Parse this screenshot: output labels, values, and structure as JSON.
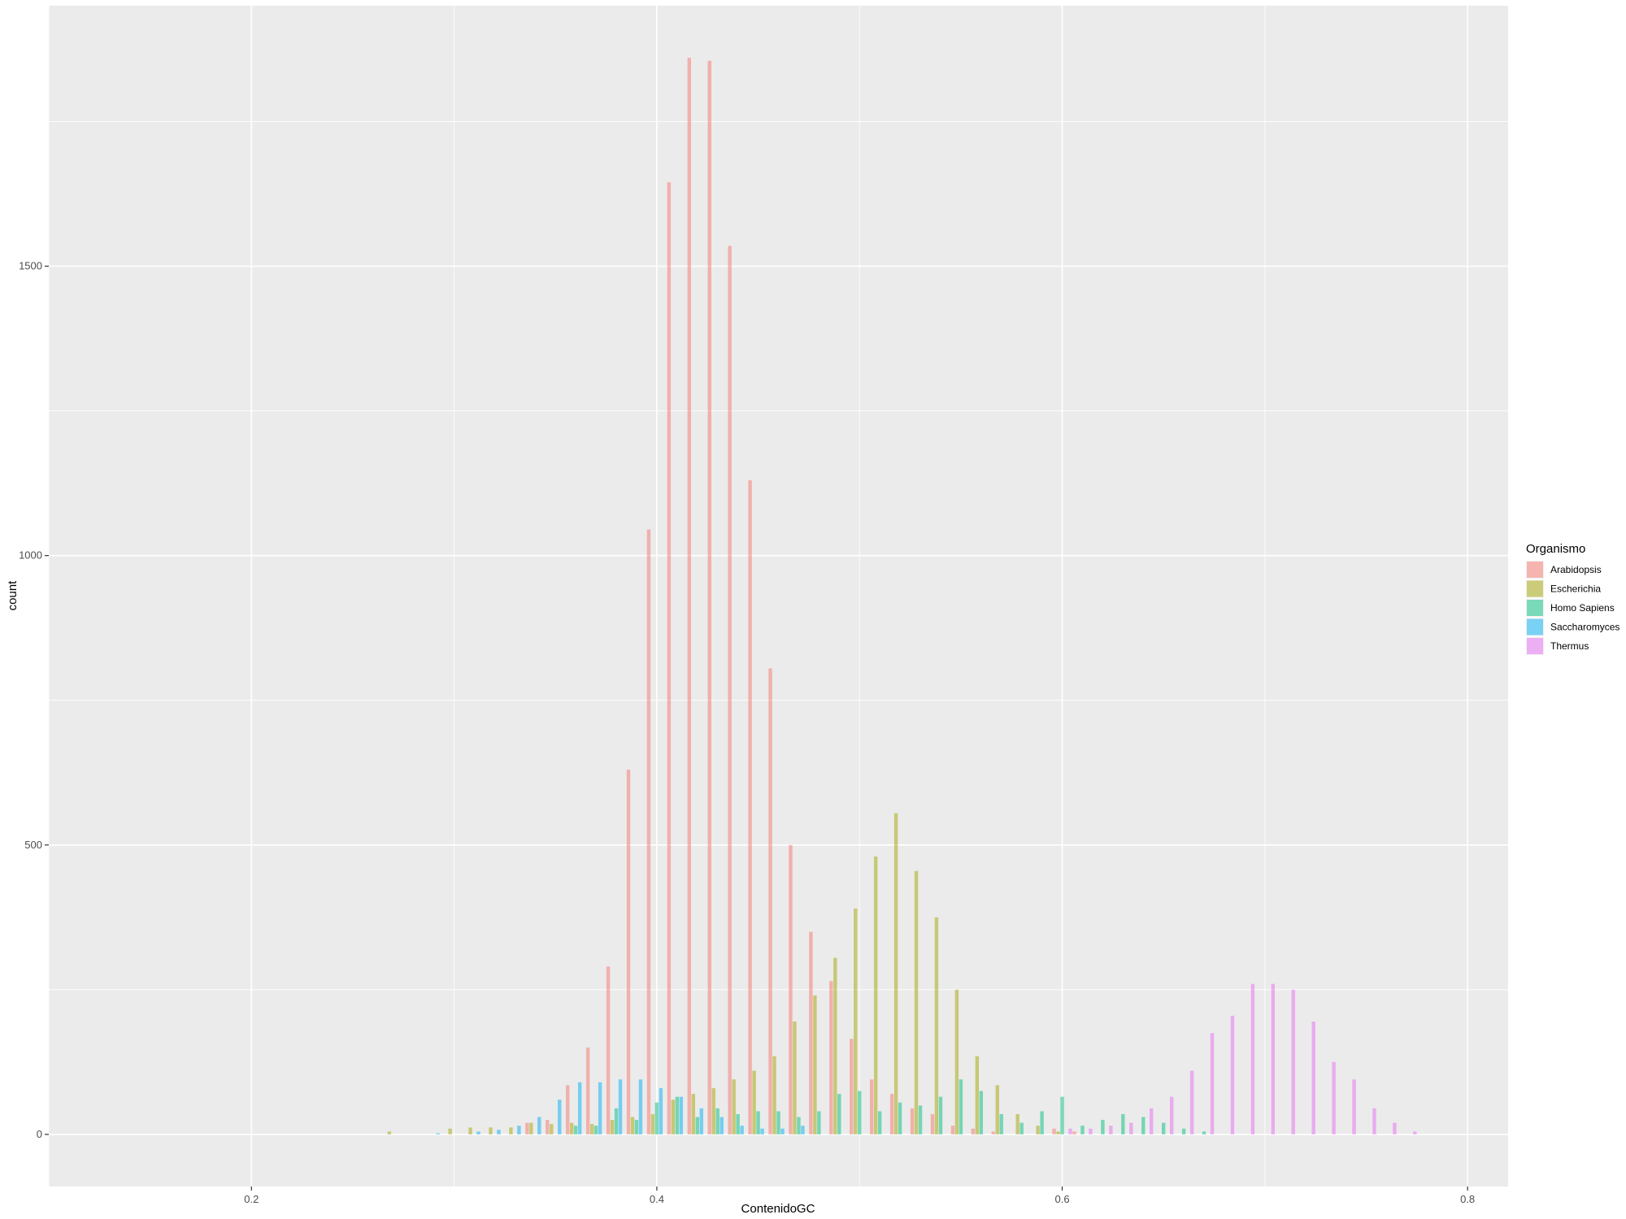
{
  "chart_data": {
    "type": "bar",
    "subtype": "histogram-dodged",
    "xlabel": "ContenidoGC",
    "ylabel": "count",
    "xlim": [
      0.1,
      0.82
    ],
    "ylim": [
      -90,
      1950
    ],
    "x_ticks": [
      0.2,
      0.4,
      0.6,
      0.8
    ],
    "x_tick_labels": [
      "0.2",
      "0.4",
      "0.6",
      "0.8"
    ],
    "y_ticks": [
      0,
      500,
      1000,
      1500
    ],
    "y_tick_labels": [
      "0",
      "500",
      "1000",
      "1500"
    ],
    "grid": true,
    "legend": {
      "title": "Organismo",
      "position": "right"
    },
    "bin_width": 0.01,
    "series": [
      {
        "name": "Arabidopsis",
        "color": "#F8766D",
        "points": [
          [
            0.34,
            20
          ],
          [
            0.35,
            25
          ],
          [
            0.36,
            85
          ],
          [
            0.37,
            150
          ],
          [
            0.38,
            290
          ],
          [
            0.39,
            630
          ],
          [
            0.4,
            1045
          ],
          [
            0.41,
            1645
          ],
          [
            0.42,
            1860
          ],
          [
            0.43,
            1855
          ],
          [
            0.44,
            1535
          ],
          [
            0.45,
            1130
          ],
          [
            0.46,
            805
          ],
          [
            0.47,
            500
          ],
          [
            0.48,
            350
          ],
          [
            0.49,
            265
          ],
          [
            0.5,
            165
          ],
          [
            0.51,
            95
          ],
          [
            0.52,
            70
          ],
          [
            0.53,
            45
          ],
          [
            0.54,
            35
          ],
          [
            0.55,
            15
          ],
          [
            0.56,
            10
          ],
          [
            0.57,
            5
          ],
          [
            0.6,
            10
          ],
          [
            0.61,
            5
          ]
        ]
      },
      {
        "name": "Escherichia",
        "color": "#A3A500",
        "points": [
          [
            0.27,
            5
          ],
          [
            0.3,
            10
          ],
          [
            0.31,
            12
          ],
          [
            0.32,
            12
          ],
          [
            0.33,
            12
          ],
          [
            0.34,
            20
          ],
          [
            0.35,
            18
          ],
          [
            0.36,
            20
          ],
          [
            0.37,
            18
          ],
          [
            0.38,
            25
          ],
          [
            0.39,
            30
          ],
          [
            0.4,
            35
          ],
          [
            0.41,
            60
          ],
          [
            0.42,
            70
          ],
          [
            0.43,
            80
          ],
          [
            0.44,
            95
          ],
          [
            0.45,
            110
          ],
          [
            0.46,
            135
          ],
          [
            0.47,
            195
          ],
          [
            0.48,
            240
          ],
          [
            0.49,
            305
          ],
          [
            0.5,
            390
          ],
          [
            0.51,
            480
          ],
          [
            0.52,
            555
          ],
          [
            0.53,
            455
          ],
          [
            0.54,
            375
          ],
          [
            0.55,
            250
          ],
          [
            0.56,
            135
          ],
          [
            0.57,
            85
          ],
          [
            0.58,
            35
          ],
          [
            0.59,
            15
          ],
          [
            0.6,
            5
          ]
        ]
      },
      {
        "name": "Homo Sapiens",
        "color": "#00BF7D",
        "points": [
          [
            0.36,
            15
          ],
          [
            0.37,
            15
          ],
          [
            0.38,
            45
          ],
          [
            0.39,
            25
          ],
          [
            0.4,
            55
          ],
          [
            0.41,
            65
          ],
          [
            0.42,
            30
          ],
          [
            0.43,
            45
          ],
          [
            0.44,
            35
          ],
          [
            0.45,
            40
          ],
          [
            0.46,
            40
          ],
          [
            0.47,
            30
          ],
          [
            0.48,
            40
          ],
          [
            0.49,
            70
          ],
          [
            0.5,
            75
          ],
          [
            0.51,
            40
          ],
          [
            0.52,
            55
          ],
          [
            0.53,
            50
          ],
          [
            0.54,
            65
          ],
          [
            0.55,
            95
          ],
          [
            0.56,
            75
          ],
          [
            0.57,
            35
          ],
          [
            0.58,
            20
          ],
          [
            0.59,
            40
          ],
          [
            0.6,
            65
          ],
          [
            0.61,
            15
          ],
          [
            0.62,
            25
          ],
          [
            0.63,
            35
          ],
          [
            0.64,
            30
          ],
          [
            0.65,
            20
          ],
          [
            0.66,
            10
          ],
          [
            0.67,
            5
          ]
        ]
      },
      {
        "name": "Saccharomyces",
        "color": "#00B0F6",
        "points": [
          [
            0.29,
            2
          ],
          [
            0.31,
            5
          ],
          [
            0.32,
            8
          ],
          [
            0.33,
            15
          ],
          [
            0.34,
            30
          ],
          [
            0.35,
            60
          ],
          [
            0.36,
            90
          ],
          [
            0.37,
            90
          ],
          [
            0.38,
            95
          ],
          [
            0.39,
            95
          ],
          [
            0.4,
            80
          ],
          [
            0.41,
            65
          ],
          [
            0.42,
            45
          ],
          [
            0.43,
            30
          ],
          [
            0.44,
            15
          ],
          [
            0.45,
            10
          ],
          [
            0.46,
            10
          ],
          [
            0.47,
            15
          ]
        ]
      },
      {
        "name": "Thermus",
        "color": "#E76BF3",
        "points": [
          [
            0.6,
            10
          ],
          [
            0.61,
            10
          ],
          [
            0.62,
            15
          ],
          [
            0.63,
            20
          ],
          [
            0.64,
            45
          ],
          [
            0.65,
            65
          ],
          [
            0.66,
            110
          ],
          [
            0.67,
            175
          ],
          [
            0.68,
            205
          ],
          [
            0.69,
            260
          ],
          [
            0.7,
            260
          ],
          [
            0.71,
            250
          ],
          [
            0.72,
            195
          ],
          [
            0.73,
            125
          ],
          [
            0.74,
            95
          ],
          [
            0.75,
            45
          ],
          [
            0.76,
            20
          ],
          [
            0.77,
            5
          ]
        ]
      }
    ]
  }
}
